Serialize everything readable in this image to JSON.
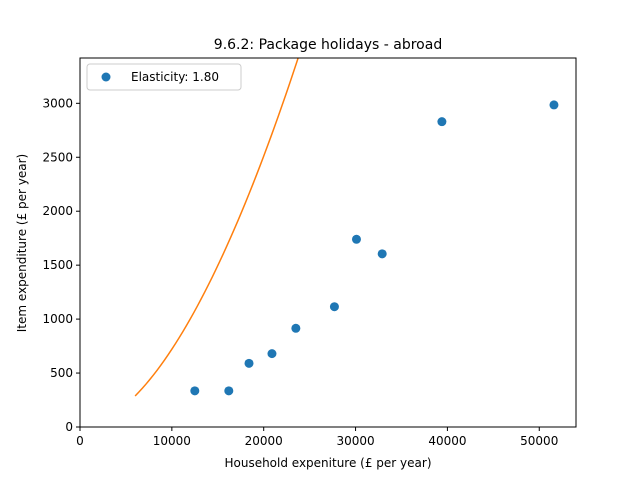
{
  "chart_data": {
    "type": "scatter",
    "title": "9.6.2: Package holidays - abroad",
    "xlabel": "Household expeniture (£ per year)",
    "ylabel": "Item expenditure (£ per year)",
    "xlim": [
      0,
      54000
    ],
    "ylim": [
      0,
      3420
    ],
    "xticks": [
      0,
      10000,
      20000,
      30000,
      40000,
      50000
    ],
    "yticks": [
      0,
      500,
      1000,
      1500,
      2000,
      2500,
      3000
    ],
    "grid": false,
    "legend_position": "top-left",
    "series": [
      {
        "name": "Elasticity: 1.80",
        "kind": "scatter",
        "color": "#1f77b4",
        "x": [
          12500,
          16200,
          18400,
          20900,
          23500,
          27700,
          30100,
          32900,
          39400,
          51600
        ],
        "y": [
          335,
          335,
          590,
          680,
          915,
          1115,
          1740,
          1605,
          2830,
          2985
        ]
      },
      {
        "kind": "line",
        "color": "#ff7f0e",
        "model": "power",
        "exponent": 1.8,
        "coefficient": 4.549e-05,
        "x_range": [
          6000,
          54000
        ]
      }
    ]
  }
}
